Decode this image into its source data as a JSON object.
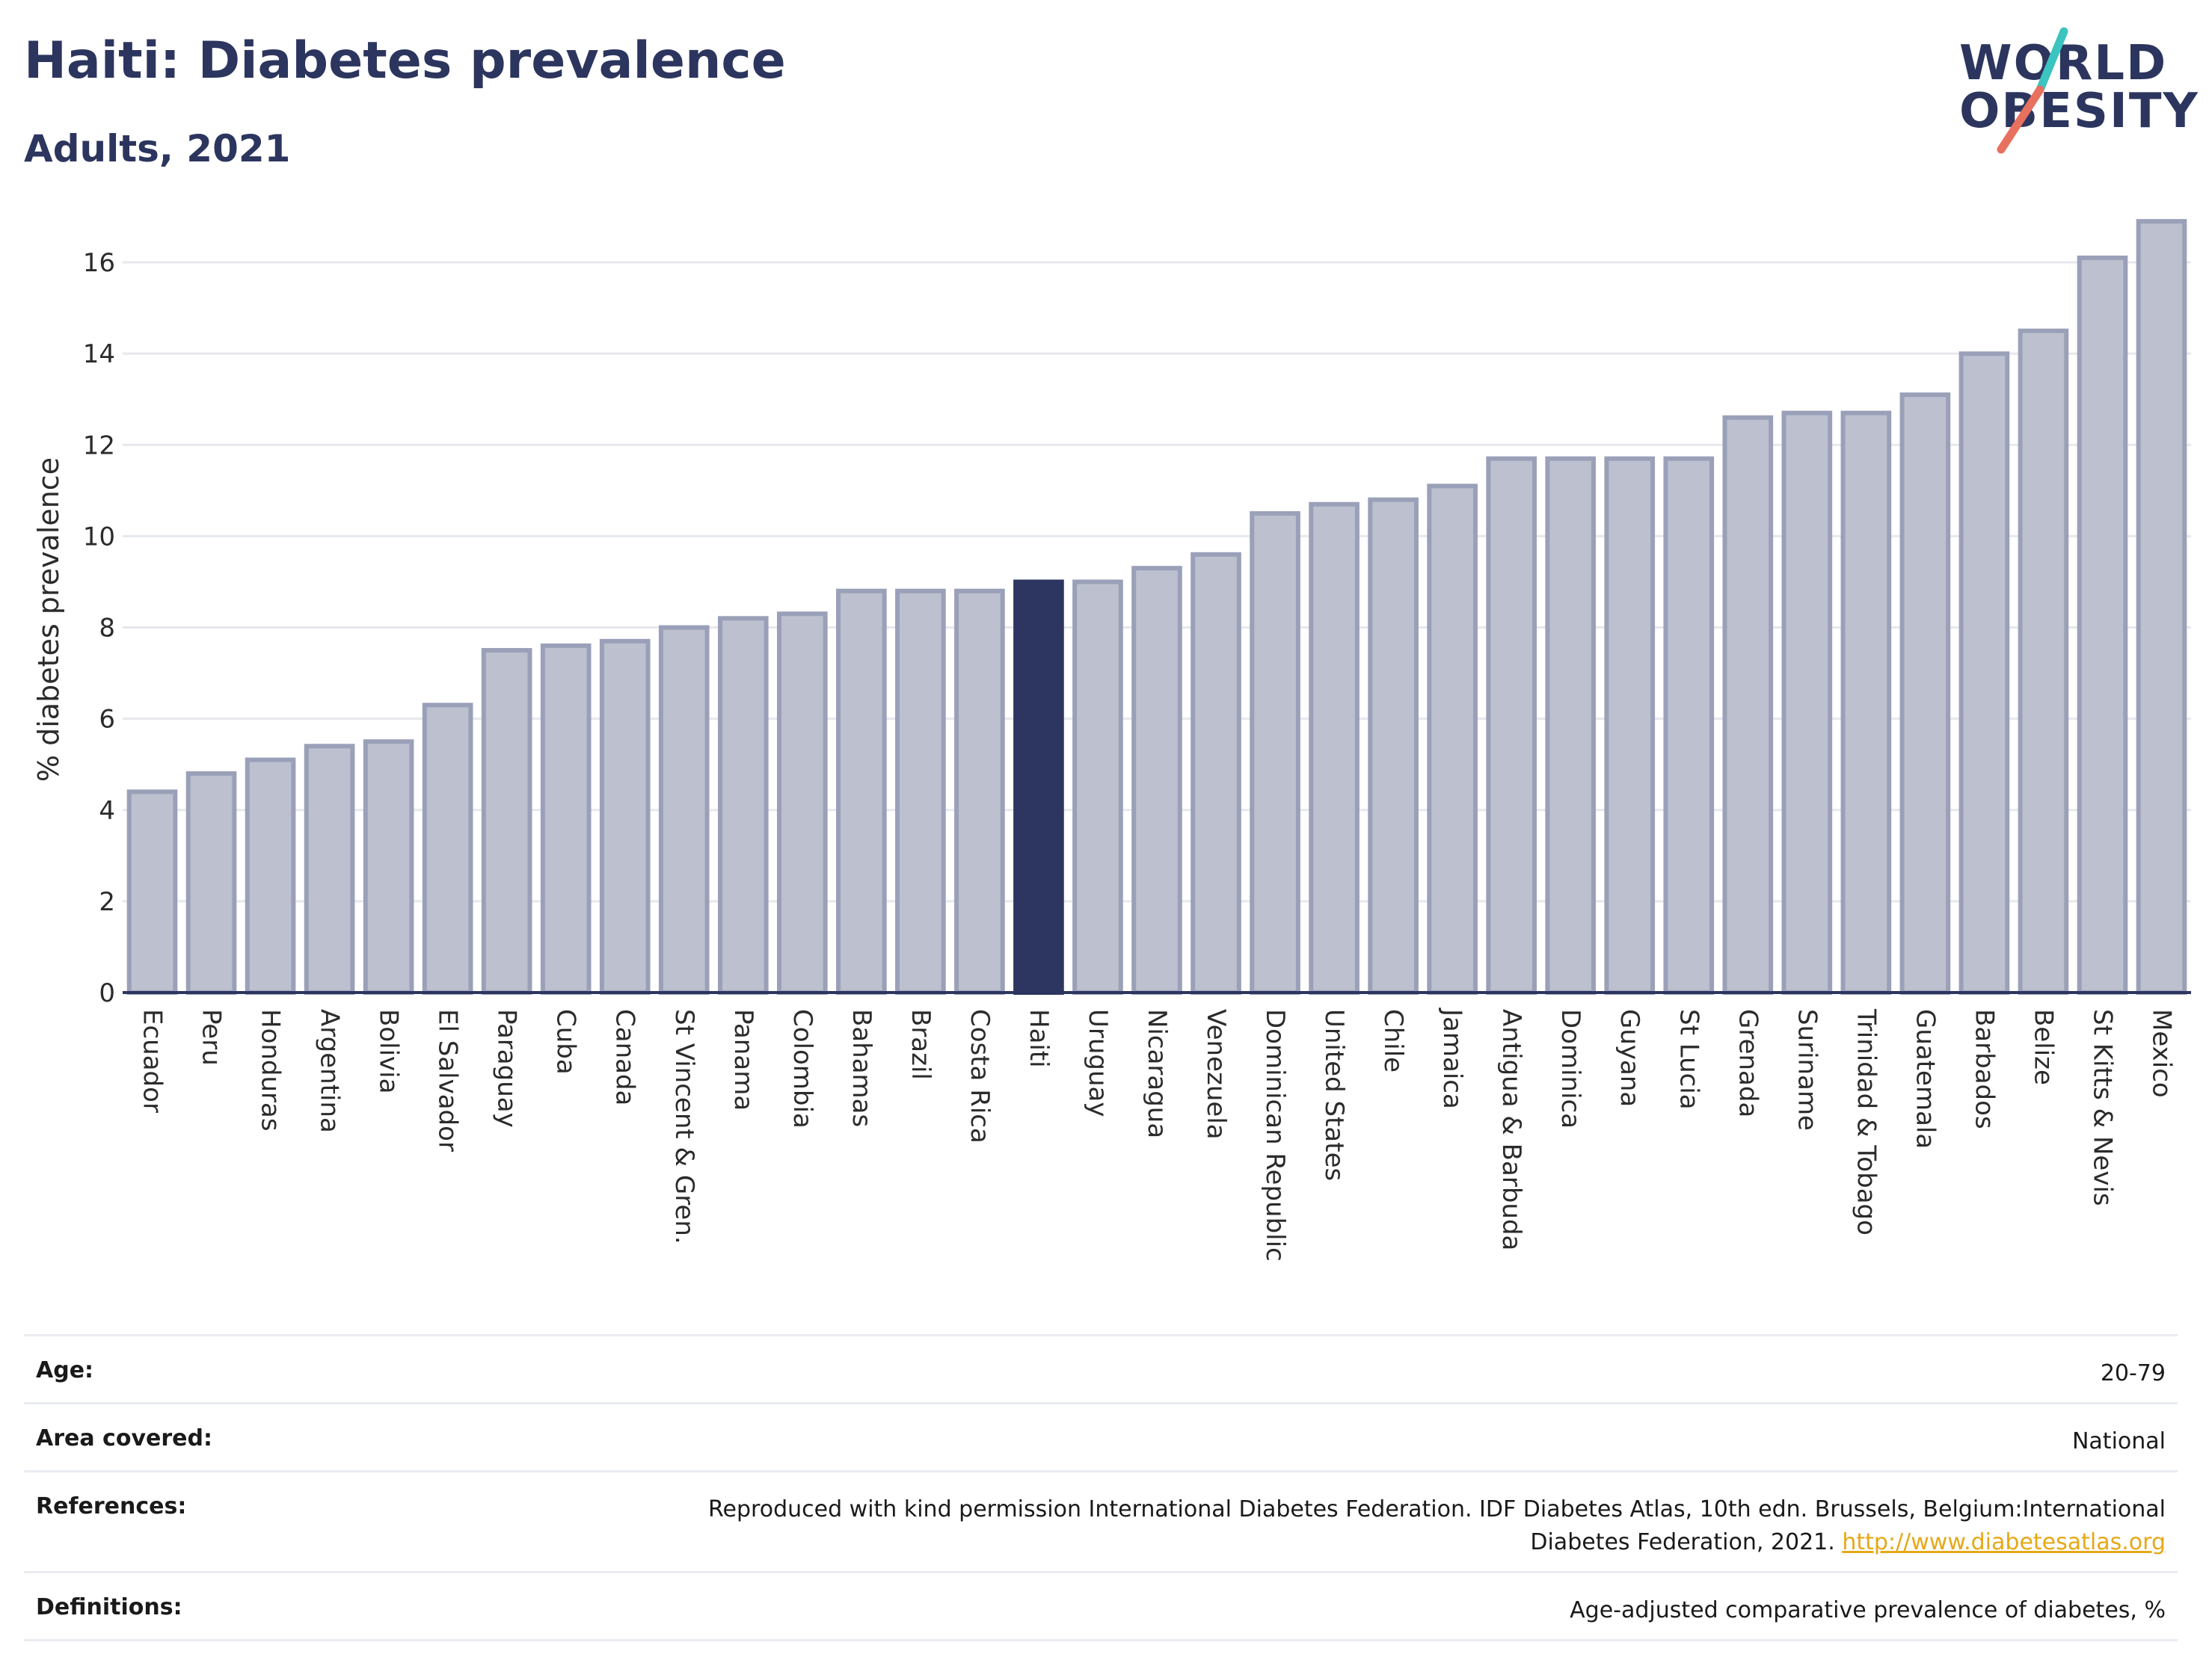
{
  "header": {
    "title": "Haiti: Diabetes prevalence",
    "subtitle": "Adults, 2021"
  },
  "logo": {
    "line1": "WORLD",
    "line2": "OBESITY",
    "accent_colors": [
      "#3cc4c0",
      "#e8705f"
    ]
  },
  "colors": {
    "bar": "#bcc0cf",
    "bar_border": "#9aa0b8",
    "highlight": "#2c3660",
    "grid": "#e6e8ee",
    "axis": "#2c355e"
  },
  "chart_data": {
    "type": "bar",
    "title": "Haiti: Diabetes prevalence",
    "subtitle": "Adults, 2021",
    "ylabel": "% diabetes prevalence",
    "xlabel": "",
    "ylim": [
      0,
      17
    ],
    "yticks": [
      0,
      2,
      4,
      6,
      8,
      10,
      12,
      14,
      16
    ],
    "grid": true,
    "highlight": "Haiti",
    "categories": [
      "Ecuador",
      "Peru",
      "Honduras",
      "Argentina",
      "Bolivia",
      "El Salvador",
      "Paraguay",
      "Cuba",
      "Canada",
      "St Vincent & Gren.",
      "Panama",
      "Colombia",
      "Bahamas",
      "Brazil",
      "Costa Rica",
      "Haiti",
      "Uruguay",
      "Nicaragua",
      "Venezuela",
      "Dominican Republic",
      "United States",
      "Chile",
      "Jamaica",
      "Antigua & Barbuda",
      "Dominica",
      "Guyana",
      "St Lucia",
      "Grenada",
      "Suriname",
      "Trinidad & Tobago",
      "Guatemala",
      "Barbados",
      "Belize",
      "St Kitts & Nevis",
      "Mexico"
    ],
    "values": [
      4.4,
      4.8,
      5.1,
      5.4,
      5.5,
      6.3,
      7.5,
      7.6,
      7.7,
      8.0,
      8.2,
      8.3,
      8.8,
      8.8,
      8.8,
      9.0,
      9.0,
      9.3,
      9.6,
      10.5,
      10.7,
      10.8,
      11.1,
      11.7,
      11.7,
      11.7,
      11.7,
      12.6,
      12.7,
      12.7,
      13.1,
      14.0,
      14.5,
      16.1,
      16.9
    ]
  },
  "meta": {
    "age_label": "Age:",
    "age_value": "20-79",
    "area_label": "Area covered:",
    "area_value": "National",
    "references_label": "References:",
    "references_text": "Reproduced with kind permission International Diabetes Federation.  IDF Diabetes Atlas, 10th edn. Brussels, Belgium:International Diabetes Federation, 2021.",
    "references_link": "http://www.diabetesatlas.org",
    "definitions_label": "Definitions:",
    "definitions_value": "Age-adjusted comparative prevalence of diabetes, %"
  }
}
